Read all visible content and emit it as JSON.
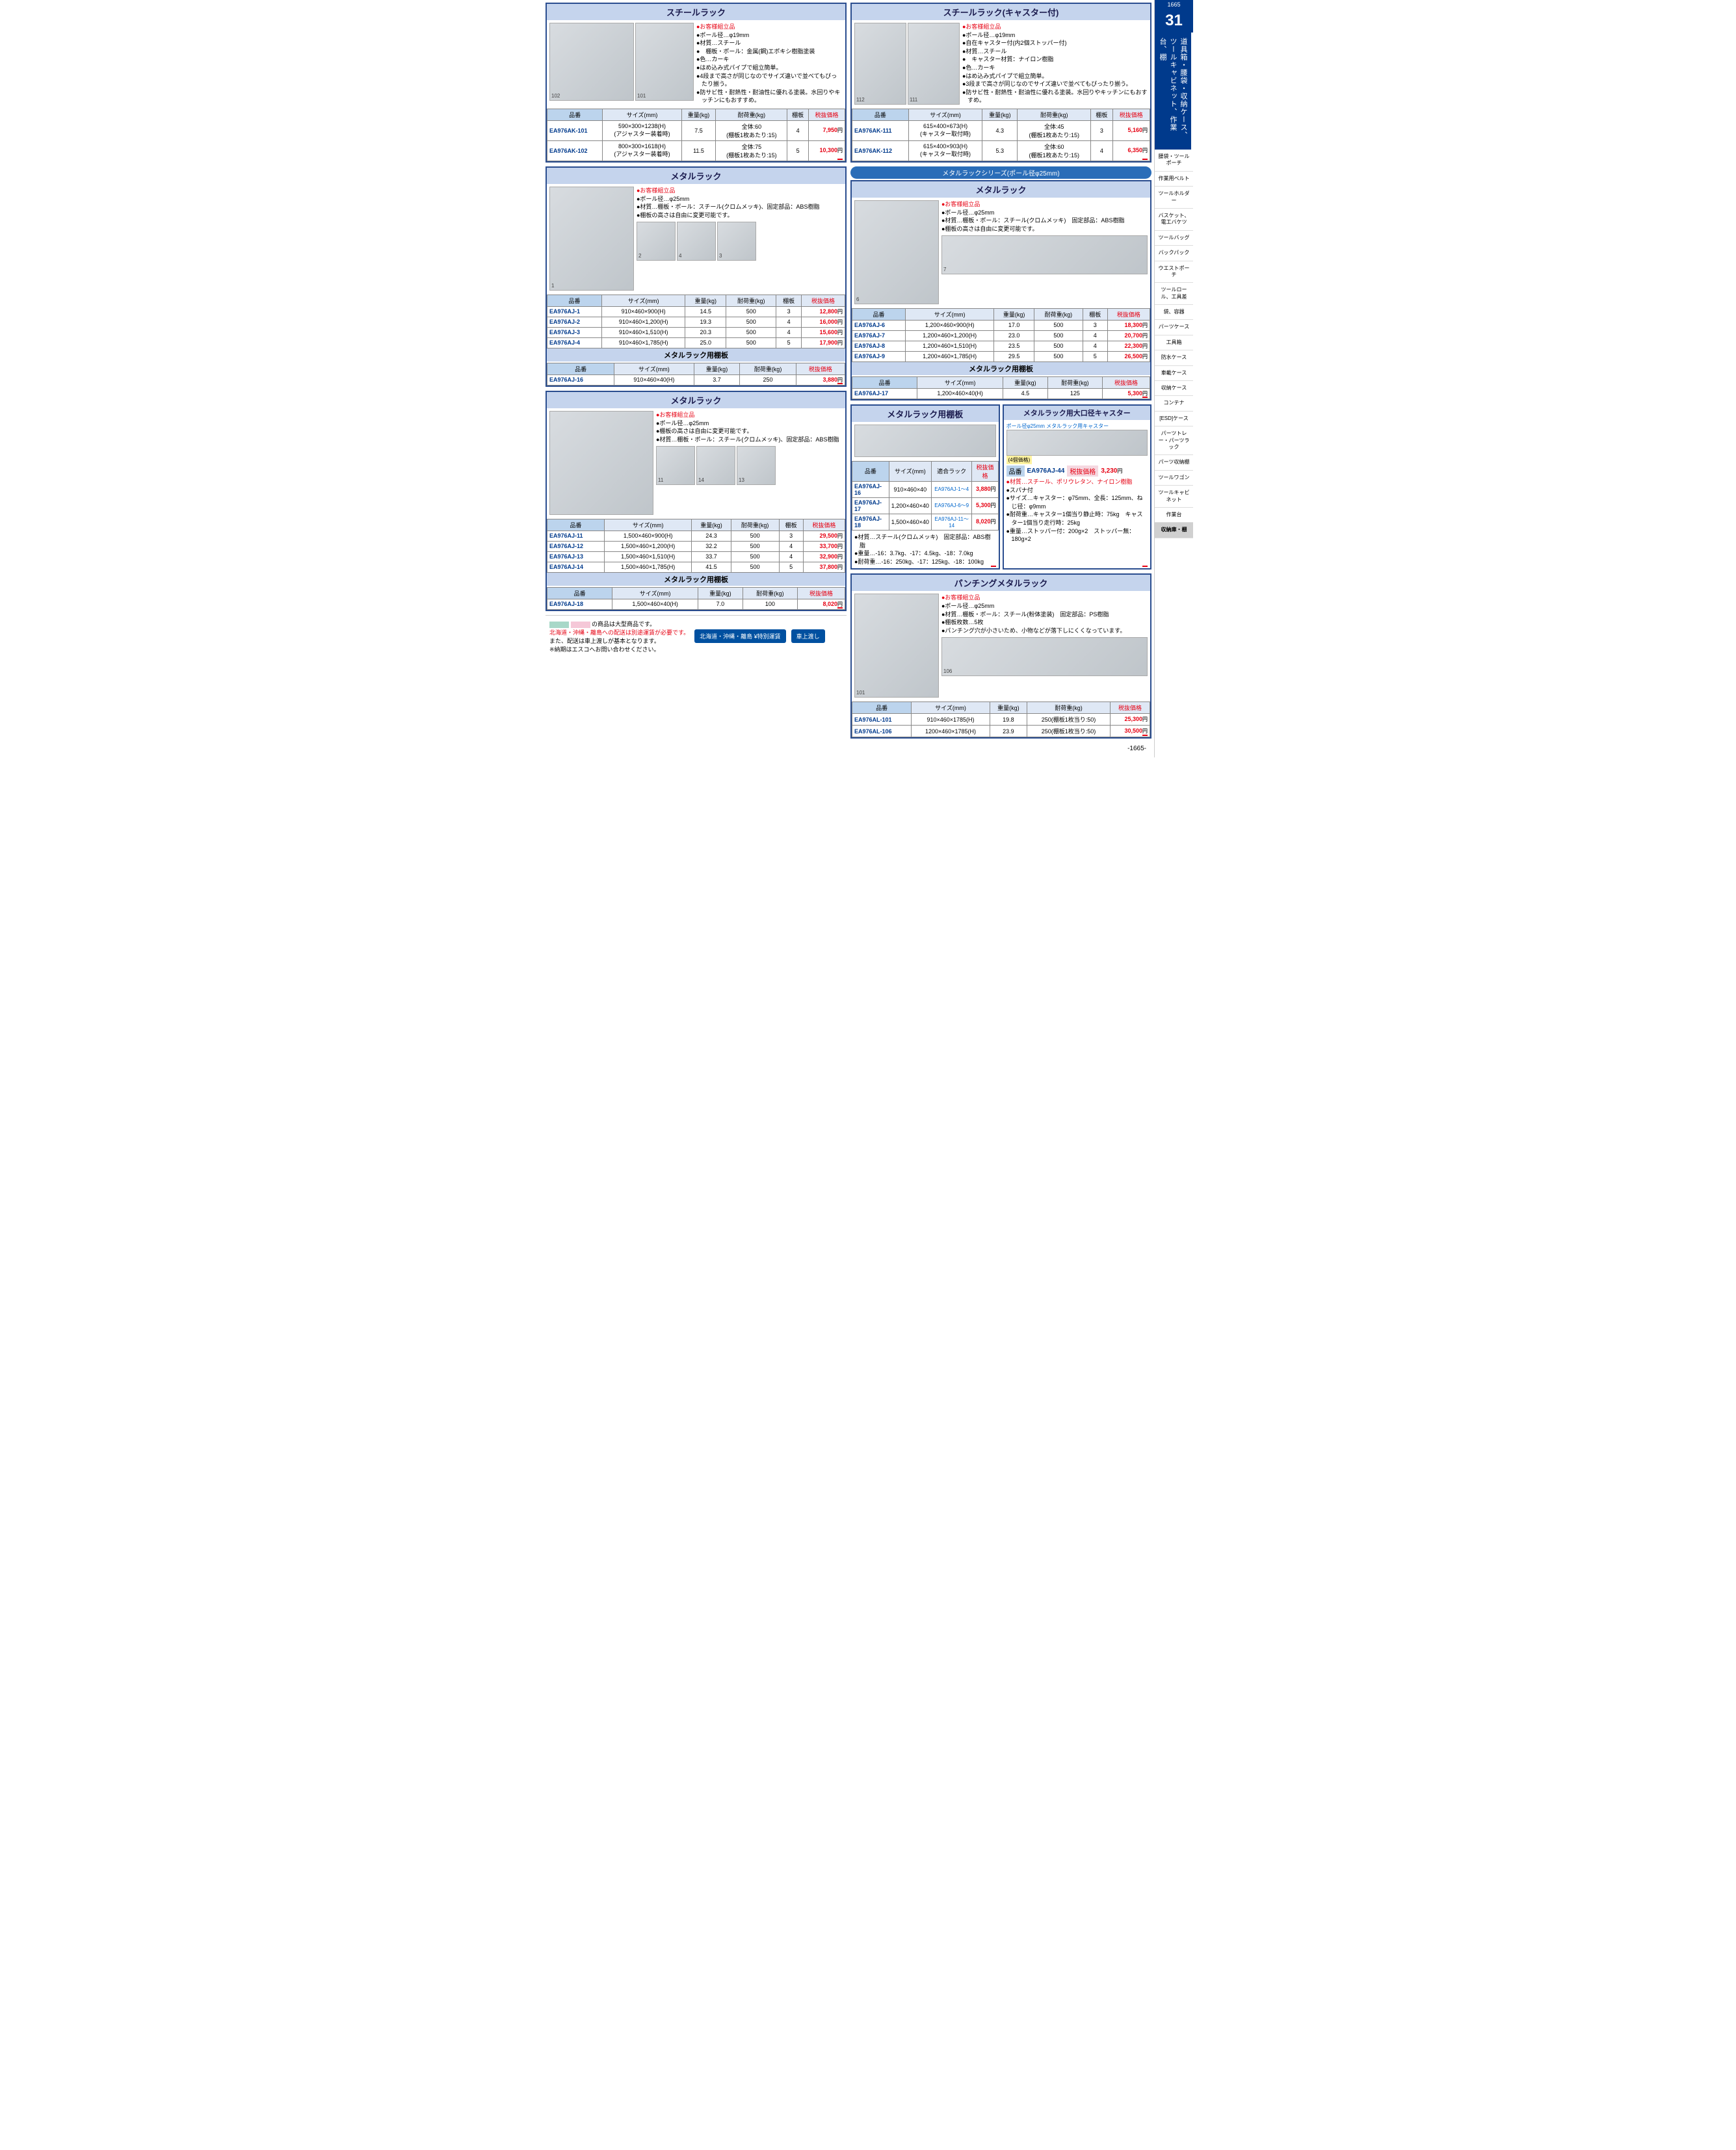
{
  "page": {
    "top_num": "1665",
    "chapter_num": "31",
    "chapter_title": "道具箱・腰袋・収納ケース、ツールキャビネット、作業台、棚",
    "bottom_num": "-1665-"
  },
  "nav": [
    "腰袋・ツールポーチ",
    "作業用ベルト",
    "ツールホルダー",
    "バスケット、電工バケツ",
    "ツールバッグ",
    "バックパック",
    "ウエストポーチ",
    "ツールロール、工具差",
    "袋、容器",
    "パーツケース",
    "工具箱",
    "防水ケース",
    "車載ケース",
    "収納ケース",
    "コンテナ",
    "[ESD]ケース",
    "パーツトレー・パーツラック",
    "パーツ収納棚",
    "ツールワゴン",
    "ツールキャビネット",
    "作業台",
    "収納庫・棚"
  ],
  "nav_active_index": 21,
  "blocks": {
    "steel_rack": {
      "title": "スチールラック",
      "specs": [
        "お客様組立品",
        "ポール径…φ19mm",
        "材質…スチール",
        "　棚板・ポール：金属(鋼)エポキシ樹脂塗装",
        "色…カーキ",
        "はめ込み式パイプで組立簡単。",
        "4段まで高さが同じなのでサイズ違いで並べてもぴったり揃う。",
        "防サビ性・耐熱性・耐油性に優れる塗装。水回りやキッチンにもおすすめ。"
      ],
      "imgs": [
        "102",
        "101"
      ],
      "cols": [
        "品番",
        "サイズ(mm)",
        "重量(kg)",
        "耐荷重(kg)",
        "棚板",
        "税抜価格"
      ],
      "rows": [
        [
          "EA976AK-101",
          "590×300×1238(H)\n(アジャスター装着時)",
          "7.5",
          "全体:60\n(棚板1枚あたり:15)",
          "4",
          "7,950"
        ],
        [
          "EA976AK-102",
          "800×300×1618(H)\n(アジャスター装着時)",
          "11.5",
          "全体:75\n(棚板1枚あたり:15)",
          "5",
          "10,300"
        ]
      ]
    },
    "steel_rack_caster": {
      "title": "スチールラック(キャスター付)",
      "specs": [
        "お客様組立品",
        "ポール径…φ19mm",
        "自在キャスター付(内2個ストッパー付)",
        "材質…スチール",
        "　キャスター材質：ナイロン樹脂",
        "色…カーキ",
        "はめ込み式パイプで組立簡単。",
        "3段まで高さが同じなのでサイズ違いで並べてもぴったり揃う。",
        "防サビ性・耐熱性・耐油性に優れる塗装。水回りやキッチンにもおすすめ。"
      ],
      "imgs": [
        "112",
        "111"
      ],
      "cols": [
        "品番",
        "サイズ(mm)",
        "重量(kg)",
        "耐荷重(kg)",
        "棚板",
        "税抜価格"
      ],
      "rows": [
        [
          "EA976AK-111",
          "615×400×673(H)\n(キャスター取付時)",
          "4.3",
          "全体:45\n(棚板1枚あたり:15)",
          "3",
          "5,160"
        ],
        [
          "EA976AK-112",
          "615×400×903(H)\n(キャスター取付時)",
          "5.3",
          "全体:60\n(棚板1枚あたり:15)",
          "4",
          "6,350"
        ]
      ]
    },
    "series_band": "メタルラックシリーズ(ポール径φ25mm)",
    "metal_rack_a": {
      "title": "メタルラック",
      "specs": [
        "お客様組立品",
        "ポール径…φ25mm",
        "材質…棚板・ポール：スチール(クロムメッキ)、固定部品：ABS樹脂",
        "棚板の高さは自由に変更可能です。"
      ],
      "imgs": [
        "1",
        "2",
        "4",
        "3"
      ],
      "cols": [
        "品番",
        "サイズ(mm)",
        "重量(kg)",
        "耐荷重(kg)",
        "棚板",
        "税抜価格"
      ],
      "rows": [
        [
          "EA976AJ-1",
          "910×460×900(H)",
          "14.5",
          "500",
          "3",
          "12,800"
        ],
        [
          "EA976AJ-2",
          "910×460×1,200(H)",
          "19.3",
          "500",
          "4",
          "16,000"
        ],
        [
          "EA976AJ-3",
          "910×460×1,510(H)",
          "20.3",
          "500",
          "4",
          "15,600"
        ],
        [
          "EA976AJ-4",
          "910×460×1,785(H)",
          "25.0",
          "500",
          "5",
          "17,900"
        ]
      ],
      "shelf_title": "メタルラック用棚板",
      "shelf_cols": [
        "品番",
        "サイズ(mm)",
        "重量(kg)",
        "耐荷重(kg)",
        "税抜価格"
      ],
      "shelf_rows": [
        [
          "EA976AJ-16",
          "910×460×40(H)",
          "3.7",
          "250",
          "3,880"
        ]
      ]
    },
    "metal_rack_b": {
      "title": "メタルラック",
      "specs": [
        "お客様組立品",
        "ポール径…φ25mm",
        "材質…棚板・ポール：スチール(クロムメッキ)　固定部品：ABS樹脂",
        "棚板の高さは自由に変更可能です。"
      ],
      "imgs": [
        "6",
        "7"
      ],
      "cols": [
        "品番",
        "サイズ(mm)",
        "重量(kg)",
        "耐荷重(kg)",
        "棚板",
        "税抜価格"
      ],
      "rows": [
        [
          "EA976AJ-6",
          "1,200×460×900(H)",
          "17.0",
          "500",
          "3",
          "18,300"
        ],
        [
          "EA976AJ-7",
          "1,200×460×1,200(H)",
          "23.0",
          "500",
          "4",
          "20,700"
        ],
        [
          "EA976AJ-8",
          "1,200×460×1,510(H)",
          "23.5",
          "500",
          "4",
          "22,300"
        ],
        [
          "EA976AJ-9",
          "1,200×460×1,785(H)",
          "29.5",
          "500",
          "5",
          "26,500"
        ]
      ],
      "shelf_title": "メタルラック用棚板",
      "shelf_cols": [
        "品番",
        "サイズ(mm)",
        "重量(kg)",
        "耐荷重(kg)",
        "税抜価格"
      ],
      "shelf_rows": [
        [
          "EA976AJ-17",
          "1,200×460×40(H)",
          "4.5",
          "125",
          "5,300"
        ]
      ]
    },
    "metal_rack_c": {
      "title": "メタルラック",
      "specs": [
        "お客様組立品",
        "ポール径…φ25mm",
        "棚板の高さは自由に変更可能です。",
        "材質…棚板・ポール：スチール(クロムメッキ)、固定部品：ABS樹脂"
      ],
      "imgs": [
        "11",
        "14",
        "13"
      ],
      "cols": [
        "品番",
        "サイズ(mm)",
        "重量(kg)",
        "耐荷重(kg)",
        "棚板",
        "税抜価格"
      ],
      "rows": [
        [
          "EA976AJ-11",
          "1,500×460×900(H)",
          "24.3",
          "500",
          "3",
          "29,500"
        ],
        [
          "EA976AJ-12",
          "1,500×460×1,200(H)",
          "32.2",
          "500",
          "4",
          "33,700"
        ],
        [
          "EA976AJ-13",
          "1,500×460×1,510(H)",
          "33.7",
          "500",
          "4",
          "32,900"
        ],
        [
          "EA976AJ-14",
          "1,500×460×1,785(H)",
          "41.5",
          "500",
          "5",
          "37,800"
        ]
      ],
      "shelf_title": "メタルラック用棚板",
      "shelf_cols": [
        "品番",
        "サイズ(mm)",
        "重量(kg)",
        "耐荷重(kg)",
        "税抜価格"
      ],
      "shelf_rows": [
        [
          "EA976AJ-18",
          "1,500×460×40(H)",
          "7.0",
          "100",
          "8,020"
        ]
      ]
    },
    "shelf_block": {
      "title": "メタルラック用棚板",
      "cols": [
        "品番",
        "サイズ(mm)",
        "適合ラック",
        "税抜価格"
      ],
      "rows": [
        [
          "EA976AJ-16",
          "910×460×40",
          "EA976AJ-1～4",
          "3,880"
        ],
        [
          "EA976AJ-17",
          "1,200×460×40",
          "EA976AJ-6～9",
          "5,300"
        ],
        [
          "EA976AJ-18",
          "1,500×460×40",
          "EA976AJ-11～14",
          "8,020"
        ]
      ],
      "notes": [
        "材質…スチール(クロムメッキ)　固定部品：ABS樹脂",
        "重量…-16：3.7kg、-17：4.5kg、-18：7.0kg",
        "耐荷重…-16：250kg、-17：125kg、-18：100kg"
      ],
      "extra": "棚板固定部品4組付"
    },
    "caster_block": {
      "title": "メタルラック用大口径キャスター",
      "note1": "ポール径φ25mm メタルラック用キャスター",
      "note2": "(4個価格)",
      "partnum_label": "品番",
      "partnum": "EA976AJ-44",
      "price_label": "税抜価格",
      "price": "3,230",
      "specs": [
        "材質…スチール、ポリウレタン、ナイロン樹脂",
        "スパナ付",
        "サイズ…キャスター：φ75mm、全長：125mm、ねじ径：φ9mm",
        "耐荷重…キャスター1個当り静止時：75kg　キャスター1個当り走行時：25kg",
        "重量…ストッパー付：200g×2　ストッパー無：180g×2"
      ]
    },
    "punching": {
      "title": "パンチングメタルラック",
      "specs": [
        "お客様組立品",
        "ポール径…φ25mm",
        "材質…棚板・ポール：スチール(粉体塗装)　固定部品：PS樹脂",
        "棚板枚数…5枚",
        "パンチング穴が小さいため、小物などが落下しにくくなっています。"
      ],
      "imgs": [
        "101",
        "106"
      ],
      "cols": [
        "品番",
        "サイズ(mm)",
        "重量(kg)",
        "耐荷重(kg)",
        "税抜価格"
      ],
      "rows": [
        [
          "EA976AL-101",
          "910×460×1785(H)",
          "19.8",
          "250(棚板1枚当り:50)",
          "25,300"
        ],
        [
          "EA976AL-106",
          "1200×460×1785(H)",
          "23.9",
          "250(棚板1枚当り:50)",
          "30,500"
        ]
      ]
    },
    "footer": {
      "large_item_note": "の商品は大型商品です。",
      "ship_note1": "北海道・沖縄・離島への配送は別途運賃が必要です。",
      "ship_note2": "また、配送は車上渡しが基本となります。",
      "ship_note3": "※納期はエスコへお問い合わせください。",
      "badge1": "北海道・沖縄・離島 ¥特別運賃",
      "badge2": "車上渡し"
    },
    "iris": "IRIS"
  }
}
